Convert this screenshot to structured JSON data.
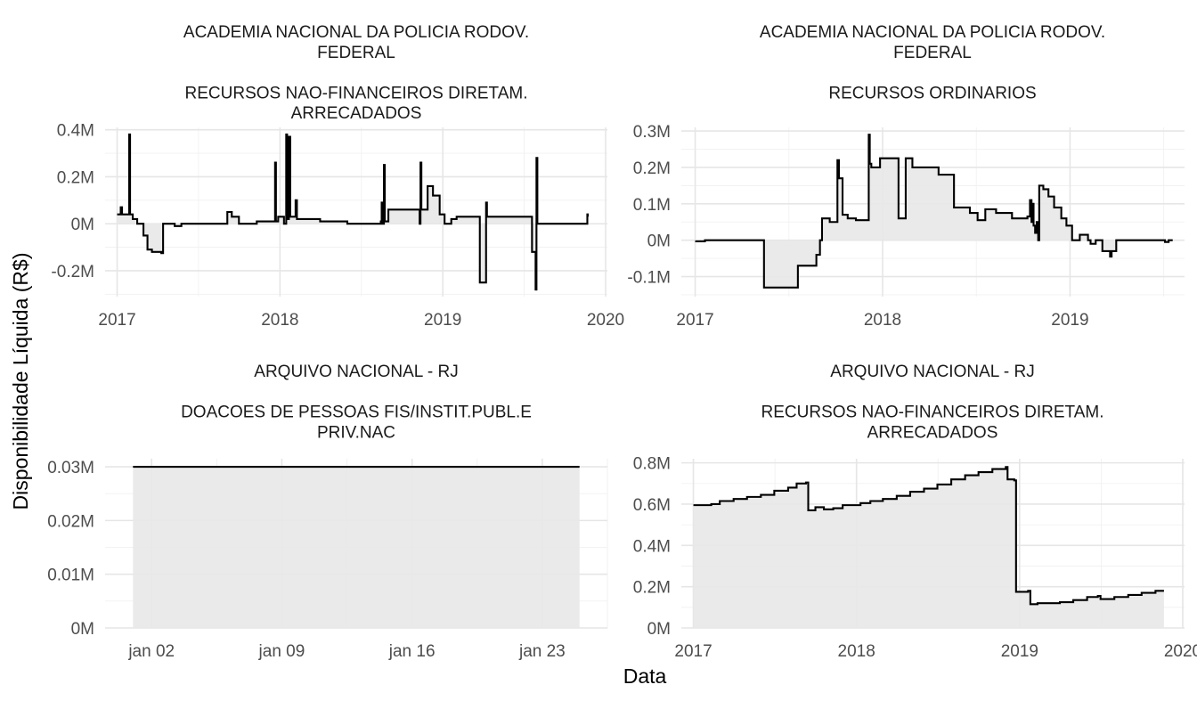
{
  "figure": {
    "xlabel": "Data",
    "ylabel": "Disponibilidade Líquida (R$)",
    "colors": {
      "line": "#000000",
      "area": "#e8e8e8",
      "grid": "#ebebeb",
      "text": "#4d4d4d"
    }
  },
  "chart_data": [
    {
      "type": "area",
      "title": [
        "ACADEMIA NACIONAL DA POLICIA RODOV.",
        "FEDERAL",
        "",
        "RECURSOS NAO-FINANCEIROS DIRETAM.",
        "ARRECADADOS"
      ],
      "xscale": "date",
      "xlim": [
        "2016-12-05",
        "2020-01-05"
      ],
      "ylim": [
        -0.31,
        0.41
      ],
      "x_ticks": [
        {
          "value": "2017-01-01",
          "label": "2017"
        },
        {
          "value": "2018-01-01",
          "label": "2018"
        },
        {
          "value": "2019-01-01",
          "label": "2019"
        },
        {
          "value": "2020-01-01",
          "label": "2020"
        }
      ],
      "y_ticks": [
        {
          "value": -0.2,
          "label": "-0.2M"
        },
        {
          "value": 0,
          "label": "0M"
        },
        {
          "value": 0.2,
          "label": "0.2M"
        },
        {
          "value": 0.4,
          "label": "0.4M"
        }
      ],
      "y_unit": "millions R$",
      "grid": true,
      "series": [
        {
          "step": true,
          "points": [
            [
              "2017-01-01",
              0.04
            ],
            [
              "2017-01-09",
              0.07
            ],
            [
              "2017-01-12",
              0.04
            ],
            [
              "2017-01-27",
              0.04
            ],
            [
              "2017-01-28",
              0.38
            ],
            [
              "2017-01-30",
              0.04
            ],
            [
              "2017-02-05",
              0.02
            ],
            [
              "2017-02-15",
              0.0
            ],
            [
              "2017-03-01",
              -0.05
            ],
            [
              "2017-03-10",
              -0.11
            ],
            [
              "2017-03-20",
              -0.12
            ],
            [
              "2017-04-10",
              -0.125
            ],
            [
              "2017-04-14",
              0.0
            ],
            [
              "2017-05-01",
              0.0
            ],
            [
              "2017-05-10",
              -0.01
            ],
            [
              "2017-05-25",
              0.0
            ],
            [
              "2017-09-05",
              0.05
            ],
            [
              "2017-09-15",
              0.03
            ],
            [
              "2017-10-01",
              0.0
            ],
            [
              "2017-11-10",
              0.01
            ],
            [
              "2017-12-20",
              0.01
            ],
            [
              "2017-12-21",
              0.26
            ],
            [
              "2017-12-23",
              0.01
            ],
            [
              "2017-12-28",
              0.03
            ],
            [
              "2018-01-10",
              0.0
            ],
            [
              "2018-01-15",
              0.38
            ],
            [
              "2018-01-17",
              0.02
            ],
            [
              "2018-01-21",
              0.37
            ],
            [
              "2018-01-24",
              0.03
            ],
            [
              "2018-02-05",
              0.1
            ],
            [
              "2018-02-08",
              0.02
            ],
            [
              "2018-04-01",
              0.01
            ],
            [
              "2018-06-01",
              0.0
            ],
            [
              "2018-08-15",
              0.01
            ],
            [
              "2018-08-17",
              0.09
            ],
            [
              "2018-08-19",
              0.0
            ],
            [
              "2018-08-22",
              0.25
            ],
            [
              "2018-08-24",
              0.01
            ],
            [
              "2018-09-01",
              0.06
            ],
            [
              "2018-11-10",
              0.0
            ],
            [
              "2018-11-12",
              0.26
            ],
            [
              "2018-11-14",
              0.06
            ],
            [
              "2018-11-28",
              0.16
            ],
            [
              "2018-12-10",
              0.12
            ],
            [
              "2018-12-25",
              0.04
            ],
            [
              "2019-01-05",
              0.0
            ],
            [
              "2019-01-20",
              0.02
            ],
            [
              "2019-02-01",
              0.03
            ],
            [
              "2019-03-25",
              -0.25
            ],
            [
              "2019-04-08",
              0.09
            ],
            [
              "2019-04-10",
              0.03
            ],
            [
              "2019-07-20",
              -0.12
            ],
            [
              "2019-07-28",
              -0.28
            ],
            [
              "2019-07-30",
              0.28
            ],
            [
              "2019-08-01",
              0.0
            ],
            [
              "2019-11-20",
              0.0
            ],
            [
              "2019-11-21",
              0.04
            ],
            [
              "2019-11-22",
              0.03
            ]
          ]
        }
      ]
    },
    {
      "type": "area",
      "title": [
        "ACADEMIA NACIONAL DA POLICIA RODOV.",
        "FEDERAL",
        "",
        "RECURSOS ORDINARIOS"
      ],
      "xscale": "date",
      "xlim": [
        "2016-12-05",
        "2019-08-12"
      ],
      "ylim": [
        -0.155,
        0.31
      ],
      "x_ticks": [
        {
          "value": "2017-01-01",
          "label": "2017"
        },
        {
          "value": "2018-01-01",
          "label": "2018"
        },
        {
          "value": "2019-01-01",
          "label": "2019"
        }
      ],
      "y_ticks": [
        {
          "value": -0.1,
          "label": "-0.1M"
        },
        {
          "value": 0,
          "label": "0M"
        },
        {
          "value": 0.1,
          "label": "0.1M"
        },
        {
          "value": 0.2,
          "label": "0.2M"
        },
        {
          "value": 0.3,
          "label": "0.3M"
        }
      ],
      "y_unit": "millions R$",
      "grid": true,
      "series": [
        {
          "step": true,
          "points": [
            [
              "2017-01-01",
              -0.003
            ],
            [
              "2017-01-20",
              0.0
            ],
            [
              "2017-05-15",
              -0.13
            ],
            [
              "2017-07-20",
              -0.07
            ],
            [
              "2017-08-25",
              -0.04
            ],
            [
              "2017-09-01",
              0.0
            ],
            [
              "2017-09-05",
              0.06
            ],
            [
              "2017-09-20",
              0.05
            ],
            [
              "2017-10-01",
              0.05
            ],
            [
              "2017-10-05",
              0.22
            ],
            [
              "2017-10-08",
              0.17
            ],
            [
              "2017-10-15",
              0.07
            ],
            [
              "2017-10-25",
              0.06
            ],
            [
              "2017-11-10",
              0.055
            ],
            [
              "2017-12-05",
              0.29
            ],
            [
              "2017-12-07",
              0.21
            ],
            [
              "2017-12-10",
              0.2
            ],
            [
              "2017-12-27",
              0.225
            ],
            [
              "2018-02-01",
              0.06
            ],
            [
              "2018-02-15",
              0.225
            ],
            [
              "2018-02-28",
              0.2
            ],
            [
              "2018-04-20",
              0.18
            ],
            [
              "2018-05-20",
              0.09
            ],
            [
              "2018-06-20",
              0.075
            ],
            [
              "2018-07-05",
              0.055
            ],
            [
              "2018-07-20",
              0.085
            ],
            [
              "2018-08-10",
              0.075
            ],
            [
              "2018-09-10",
              0.06
            ],
            [
              "2018-10-10",
              0.065
            ],
            [
              "2018-10-15",
              0.11
            ],
            [
              "2018-10-18",
              0.05
            ],
            [
              "2018-10-20",
              0.1
            ],
            [
              "2018-10-22",
              0.04
            ],
            [
              "2018-10-25",
              0.02
            ],
            [
              "2018-10-28",
              0.05
            ],
            [
              "2018-10-31",
              0.0
            ],
            [
              "2018-11-02",
              0.15
            ],
            [
              "2018-11-10",
              0.14
            ],
            [
              "2018-11-20",
              0.12
            ],
            [
              "2018-12-01",
              0.09
            ],
            [
              "2018-12-15",
              0.06
            ],
            [
              "2018-12-25",
              0.04
            ],
            [
              "2019-01-05",
              0.0
            ],
            [
              "2019-01-20",
              0.015
            ],
            [
              "2019-02-05",
              0.0
            ],
            [
              "2019-02-10",
              -0.01
            ],
            [
              "2019-02-20",
              0.0
            ],
            [
              "2019-03-05",
              -0.03
            ],
            [
              "2019-03-20",
              -0.045
            ],
            [
              "2019-03-23",
              -0.03
            ],
            [
              "2019-04-01",
              0.0
            ],
            [
              "2019-07-05",
              -0.005
            ],
            [
              "2019-07-12",
              0.0
            ],
            [
              "2019-07-20",
              0.0
            ]
          ]
        }
      ]
    },
    {
      "type": "area",
      "title": [
        "ARQUIVO NACIONAL - RJ",
        "",
        "DOACOES DE PESSOAS FIS/INSTIT.PUBL.E",
        "PRIV.NAC"
      ],
      "xscale": "date",
      "xlim": [
        "2018-12-30T12:00",
        "2019-01-26T12:00"
      ],
      "ylim": [
        0,
        0.0315
      ],
      "x_ticks": [
        {
          "value": "2019-01-02",
          "label": "jan 02"
        },
        {
          "value": "2019-01-09",
          "label": "jan 09"
        },
        {
          "value": "2019-01-16",
          "label": "jan 16"
        },
        {
          "value": "2019-01-23",
          "label": "jan 23"
        }
      ],
      "y_ticks": [
        {
          "value": 0,
          "label": "0M"
        },
        {
          "value": 0.01,
          "label": "0.01M"
        },
        {
          "value": 0.02,
          "label": "0.02M"
        },
        {
          "value": 0.03,
          "label": "0.03M"
        }
      ],
      "y_unit": "millions R$",
      "grid": true,
      "series": [
        {
          "step": true,
          "points": [
            [
              "2019-01-01",
              0.03
            ],
            [
              "2019-01-25",
              0.03
            ]
          ]
        }
      ]
    },
    {
      "type": "area",
      "title": [
        "ARQUIVO NACIONAL - RJ",
        "",
        "RECURSOS NAO-FINANCEIROS DIRETAM.",
        "ARRECADADOS"
      ],
      "xscale": "date",
      "xlim": [
        "2016-12-05",
        "2020-01-05"
      ],
      "ylim": [
        0,
        0.82
      ],
      "x_ticks": [
        {
          "value": "2017-01-01",
          "label": "2017"
        },
        {
          "value": "2018-01-01",
          "label": "2018"
        },
        {
          "value": "2019-01-01",
          "label": "2019"
        },
        {
          "value": "2020-01-01",
          "label": "2020"
        }
      ],
      "y_ticks": [
        {
          "value": 0,
          "label": "0M"
        },
        {
          "value": 0.2,
          "label": "0.2M"
        },
        {
          "value": 0.4,
          "label": "0.4M"
        },
        {
          "value": 0.6,
          "label": "0.6M"
        },
        {
          "value": 0.8,
          "label": "0.8M"
        }
      ],
      "y_unit": "millions R$",
      "grid": true,
      "series": [
        {
          "step": true,
          "points": [
            [
              "2017-01-01",
              0.595
            ],
            [
              "2017-02-10",
              0.6
            ],
            [
              "2017-03-01",
              0.615
            ],
            [
              "2017-04-01",
              0.625
            ],
            [
              "2017-05-01",
              0.635
            ],
            [
              "2017-06-01",
              0.645
            ],
            [
              "2017-07-01",
              0.665
            ],
            [
              "2017-08-01",
              0.68
            ],
            [
              "2017-08-20",
              0.7
            ],
            [
              "2017-09-10",
              0.705
            ],
            [
              "2017-09-15",
              0.57
            ],
            [
              "2017-10-01",
              0.585
            ],
            [
              "2017-10-20",
              0.575
            ],
            [
              "2017-11-10",
              0.58
            ],
            [
              "2017-12-01",
              0.595
            ],
            [
              "2018-01-10",
              0.605
            ],
            [
              "2018-02-01",
              0.615
            ],
            [
              "2018-03-01",
              0.625
            ],
            [
              "2018-04-01",
              0.64
            ],
            [
              "2018-05-01",
              0.66
            ],
            [
              "2018-06-01",
              0.675
            ],
            [
              "2018-07-01",
              0.695
            ],
            [
              "2018-08-01",
              0.72
            ],
            [
              "2018-09-01",
              0.74
            ],
            [
              "2018-10-01",
              0.755
            ],
            [
              "2018-11-01",
              0.77
            ],
            [
              "2018-12-01",
              0.78
            ],
            [
              "2018-12-05",
              0.72
            ],
            [
              "2018-12-20",
              0.715
            ],
            [
              "2018-12-24",
              0.175
            ],
            [
              "2019-01-20",
              0.18
            ],
            [
              "2019-01-25",
              0.115
            ],
            [
              "2019-02-10",
              0.12
            ],
            [
              "2019-04-01",
              0.125
            ],
            [
              "2019-05-01",
              0.135
            ],
            [
              "2019-06-01",
              0.15
            ],
            [
              "2019-06-25",
              0.155
            ],
            [
              "2019-07-01",
              0.14
            ],
            [
              "2019-08-01",
              0.15
            ],
            [
              "2019-09-01",
              0.16
            ],
            [
              "2019-10-01",
              0.17
            ],
            [
              "2019-11-01",
              0.18
            ],
            [
              "2019-11-20",
              0.18
            ]
          ]
        }
      ]
    }
  ]
}
